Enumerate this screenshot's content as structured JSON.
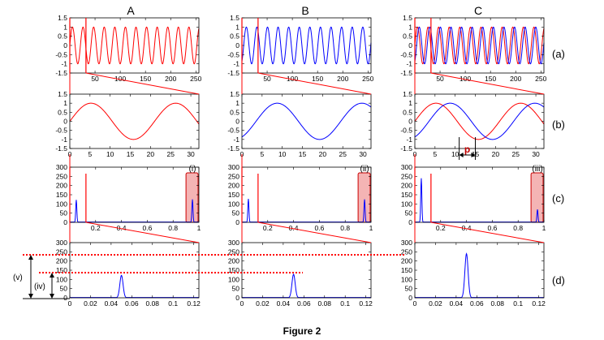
{
  "figure": {
    "caption": "Figure 2",
    "column_headers": [
      "A",
      "B",
      "C"
    ],
    "row_labels": [
      "(a)",
      "(b)",
      "(c)",
      "(d)"
    ],
    "peak_labels": [
      "(i)",
      "(ii)",
      "(iii)"
    ],
    "side_labels": [
      "(v)",
      "(iv)"
    ],
    "phase_label": "p"
  },
  "colors": {
    "series_a": "#ff0000",
    "series_b": "#0000ff",
    "highlight_fill": "#f4b4b4",
    "highlight_stroke": "#cc0000",
    "guide": "#ff0000"
  },
  "chart_data": [
    {
      "type": "line",
      "row": "(a)",
      "xlim": [
        0,
        256
      ],
      "ylim": [
        -1.5,
        1.5
      ],
      "xticks": [
        "50",
        "100",
        "150",
        "200",
        "250"
      ],
      "yticks": [
        "1.5",
        "1",
        "0.5",
        "0",
        "-0.5",
        "-1",
        "-1.5"
      ],
      "grid": false,
      "columns": {
        "A": [
          {
            "name": "",
            "color": "red",
            "function": "sin",
            "period_samples": 21,
            "phase_offset_samples": 0
          }
        ],
        "B": [
          {
            "name": "",
            "color": "blue",
            "function": "sin",
            "period_samples": 21,
            "phase_offset_samples": 3.5
          }
        ],
        "C": [
          {
            "name": "",
            "color": "red",
            "function": "sin",
            "period_samples": 21,
            "phase_offset_samples": 0
          },
          {
            "name": "",
            "color": "blue",
            "function": "sin",
            "period_samples": 21,
            "phase_offset_samples": 3.5
          }
        ]
      },
      "zoom_window_x": [
        0,
        32
      ]
    },
    {
      "type": "line",
      "row": "(b)",
      "xlim": [
        0,
        32
      ],
      "ylim": [
        -1.5,
        1.5
      ],
      "xticks": [
        "0",
        "5",
        "10",
        "15",
        "20",
        "25",
        "30"
      ],
      "yticks": [
        "1.5",
        "1",
        "0.5",
        "0",
        "-0.5",
        "-1",
        "-1.5"
      ],
      "grid": false,
      "columns": {
        "A": [
          {
            "name": "",
            "color": "red",
            "function": "sin",
            "period_samples": 21,
            "phase_offset_samples": 0
          }
        ],
        "B": [
          {
            "name": "",
            "color": "blue",
            "function": "sin",
            "period_samples": 21,
            "phase_offset_samples": 3.5
          }
        ],
        "C": [
          {
            "name": "",
            "color": "red",
            "function": "sin",
            "period_samples": 21,
            "phase_offset_samples": 0
          },
          {
            "name": "",
            "color": "blue",
            "function": "sin",
            "period_samples": 21,
            "phase_offset_samples": 3.5
          }
        ]
      },
      "phase_shift_arrow_x": [
        11,
        15
      ]
    },
    {
      "type": "line",
      "row": "(c)",
      "xlim": [
        0,
        1
      ],
      "ylim": [
        0,
        300
      ],
      "xticks": [
        "0.2",
        "0.4",
        "0.6",
        "0.8",
        "1"
      ],
      "yticks": [
        "300",
        "250",
        "200",
        "150",
        "100",
        "50",
        "0"
      ],
      "grid": false,
      "columns": {
        "A": {
          "color": "blue",
          "peaks": [
            {
              "x": 0.05,
              "y": 122
            },
            {
              "x": 0.95,
              "y": 125
            }
          ],
          "highlight_x": [
            0.9,
            1.0
          ]
        },
        "B": {
          "color": "blue",
          "peaks": [
            {
              "x": 0.05,
              "y": 128
            },
            {
              "x": 0.95,
              "y": 125
            }
          ],
          "highlight_x": [
            0.9,
            1.0
          ]
        },
        "C": {
          "color": "blue",
          "peaks": [
            {
              "x": 0.05,
              "y": 240
            },
            {
              "x": 0.95,
              "y": 70
            }
          ],
          "highlight_x": [
            0.9,
            1.0
          ]
        }
      },
      "zoom_window_x": [
        0,
        0.125
      ]
    },
    {
      "type": "line",
      "row": "(d)",
      "xlim": [
        0,
        0.125
      ],
      "ylim": [
        0,
        300
      ],
      "xticks": [
        "0",
        "0.02",
        "0.04",
        "0.06",
        "0.08",
        "0.1",
        "0.12"
      ],
      "yticks": [
        "300",
        "250",
        "200",
        "150",
        "100",
        "50",
        "0"
      ],
      "grid": false,
      "columns": {
        "A": {
          "color": "blue",
          "peaks": [
            {
              "x": 0.05,
              "y": 122
            }
          ]
        },
        "B": {
          "color": "blue",
          "peaks": [
            {
              "x": 0.05,
              "y": 128
            }
          ]
        },
        "C": {
          "color": "blue",
          "peaks": [
            {
              "x": 0.05,
              "y": 240
            }
          ]
        }
      },
      "reference_levels": [
        240,
        128
      ]
    }
  ]
}
